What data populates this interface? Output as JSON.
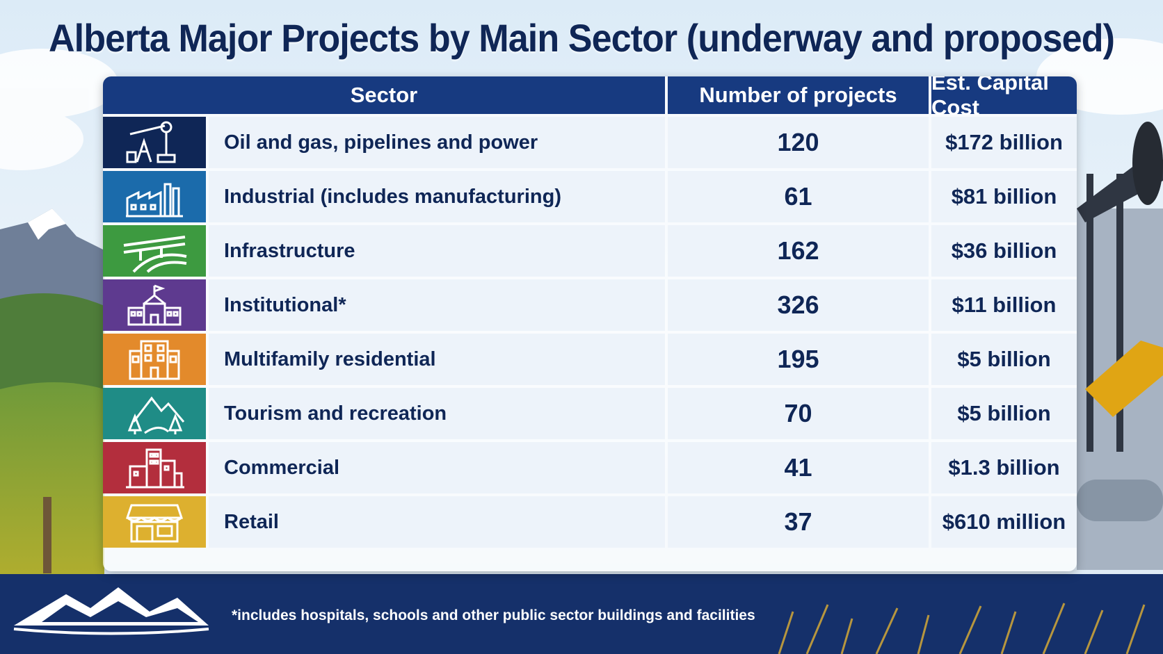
{
  "title": "Alberta Major Projects by Main Sector (underway and proposed)",
  "headers": {
    "sector": "Sector",
    "number": "Number of projects",
    "cost": "Est. Capital Cost"
  },
  "rows": [
    {
      "sector": "Oil and gas, pipelines and power",
      "number": "120",
      "cost": "$172 billion",
      "icon": "oil-pumpjack-icon",
      "color": "#0f2656"
    },
    {
      "sector": "Industrial (includes manufacturing)",
      "number": "61",
      "cost": "$81 billion",
      "icon": "factory-icon",
      "color": "#1b6bab"
    },
    {
      "sector": "Infrastructure",
      "number": "162",
      "cost": "$36 billion",
      "icon": "highway-bridge-icon",
      "color": "#3d9a40"
    },
    {
      "sector": "Institutional*",
      "number": "326",
      "cost": "$11 billion",
      "icon": "school-building-icon",
      "color": "#5e3a8f"
    },
    {
      "sector": "Multifamily residential",
      "number": "195",
      "cost": "$5 billion",
      "icon": "apartment-building-icon",
      "color": "#e38a2b"
    },
    {
      "sector": "Tourism and recreation",
      "number": "70",
      "cost": "$5 billion",
      "icon": "mountains-trees-icon",
      "color": "#1f8c86"
    },
    {
      "sector": "Commercial",
      "number": "41",
      "cost": "$1.3 billion",
      "icon": "city-buildings-icon",
      "color": "#b32e3d"
    },
    {
      "sector": "Retail",
      "number": "37",
      "cost": "$610 million",
      "icon": "storefront-icon",
      "color": "#ddb02f"
    }
  ],
  "footnote": "*includes hospitals, schools and other public sector buildings and facilities",
  "chart_data": {
    "type": "table",
    "title": "Alberta Major Projects by Main Sector (underway and proposed)",
    "columns": [
      "Sector",
      "Number of projects",
      "Est. Capital Cost"
    ],
    "categories": [
      "Oil and gas, pipelines and power",
      "Industrial (includes manufacturing)",
      "Infrastructure",
      "Institutional*",
      "Multifamily residential",
      "Tourism and recreation",
      "Commercial",
      "Retail"
    ],
    "series": [
      {
        "name": "Number of projects",
        "values": [
          120,
          61,
          162,
          326,
          195,
          70,
          41,
          37
        ]
      },
      {
        "name": "Est. Capital Cost",
        "values": [
          "$172 billion",
          "$81 billion",
          "$36 billion",
          "$11 billion",
          "$5 billion",
          "$5 billion",
          "$1.3 billion",
          "$610 million"
        ]
      }
    ]
  }
}
